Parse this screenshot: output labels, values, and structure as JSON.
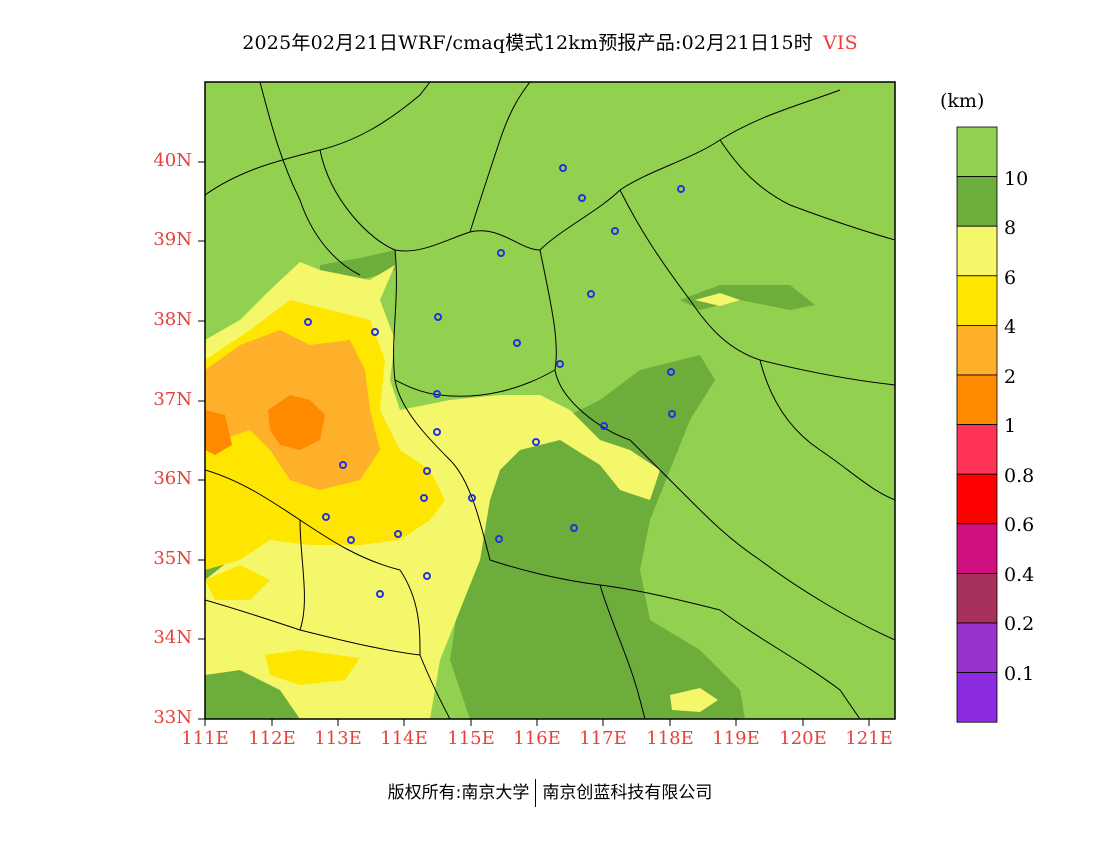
{
  "title": {
    "text": "2025年02月21日WRF/cmaq模式12km预报产品:02月21日15时",
    "variable": "VIS"
  },
  "map": {
    "lat_labels": [
      "40N",
      "39N",
      "38N",
      "37N",
      "36N",
      "35N",
      "34N",
      "33N"
    ],
    "lon_labels": [
      "111E",
      "112E",
      "113E",
      "114E",
      "115E",
      "116E",
      "117E",
      "118E",
      "119E",
      "120E",
      "121E"
    ],
    "station_marker_color": "#2233dd",
    "boundary_color": "#000000"
  },
  "colorbar": {
    "unit": "(km)",
    "bins": [
      {
        "color": "#92d050",
        "label": "10"
      },
      {
        "color": "#6cad3c",
        "label": "8"
      },
      {
        "color": "#f5f76a",
        "label": "6"
      },
      {
        "color": "#ffe600",
        "label": "4"
      },
      {
        "color": "#ffb02a",
        "label": "2"
      },
      {
        "color": "#ff8a00",
        "label": "1"
      },
      {
        "color": "#ff3355",
        "label": "0.8"
      },
      {
        "color": "#ff0000",
        "label": "0.6"
      },
      {
        "color": "#d0107e",
        "label": "0.4"
      },
      {
        "color": "#a8305c",
        "label": "0.2"
      },
      {
        "color": "#9933cc",
        "label": "0.1"
      },
      {
        "color": "#8b2be2",
        "label": ""
      }
    ]
  },
  "footer": {
    "left": "版权所有:南京大学",
    "right": "南京创蓝科技有限公司"
  }
}
